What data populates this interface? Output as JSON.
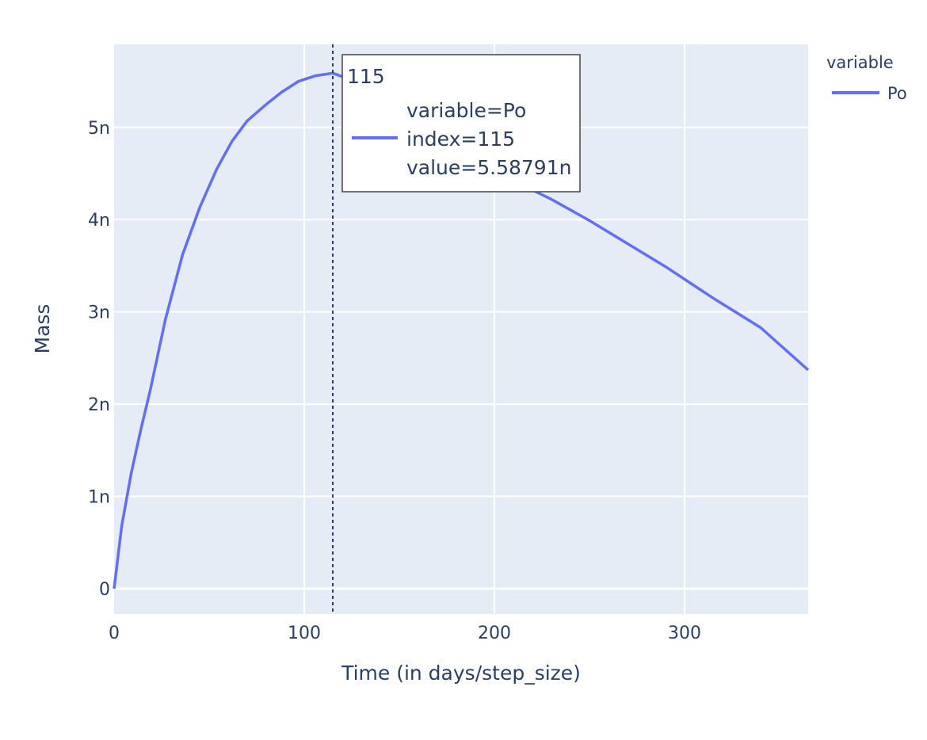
{
  "chart_data": {
    "type": "line",
    "title": "",
    "xlabel": "Time (in days/step_size)",
    "ylabel": "Mass",
    "xlim": [
      0,
      365
    ],
    "ylim": [
      -2.75e-10,
      5.9e-09
    ],
    "x_ticks": [
      {
        "value": 0,
        "label": "0"
      },
      {
        "value": 100,
        "label": "100"
      },
      {
        "value": 200,
        "label": "200"
      },
      {
        "value": 300,
        "label": "300"
      }
    ],
    "y_ticks": [
      {
        "value": 0,
        "label": "0"
      },
      {
        "value": 1e-09,
        "label": "1n"
      },
      {
        "value": 2e-09,
        "label": "2n"
      },
      {
        "value": 3e-09,
        "label": "3n"
      },
      {
        "value": 4e-09,
        "label": "4n"
      },
      {
        "value": 5e-09,
        "label": "5n"
      }
    ],
    "grid": true,
    "legend": {
      "title": "variable",
      "placement": "right"
    },
    "series": [
      {
        "name": "Po",
        "color": "#636efa",
        "x": [
          0,
          4,
          9,
          14,
          19,
          27,
          36,
          45,
          54,
          62,
          70,
          80,
          88,
          97,
          106,
          115,
          140,
          160,
          180,
          200,
          215,
          230,
          250,
          270,
          290,
          315,
          340,
          365
        ],
        "y": [
          0,
          6.8e-10,
          1.25e-09,
          1.72e-09,
          2.15e-09,
          2.92e-09,
          3.62e-09,
          4.13e-09,
          4.55e-09,
          4.85e-09,
          5.07e-09,
          5.25e-09,
          5.38e-09,
          5.5e-09,
          5.56e-09,
          5.58791e-09,
          5.4e-09,
          5.15e-09,
          4.88e-09,
          4.61e-09,
          4.37e-09,
          4.22e-09,
          3.99e-09,
          3.74e-09,
          3.49e-09,
          3.15e-09,
          2.83e-09,
          2.37e-09
        ]
      }
    ],
    "hover": {
      "x": 115,
      "header": "115",
      "lines": [
        "variable=Po",
        "index=115",
        "value=5.58791n"
      ]
    }
  }
}
